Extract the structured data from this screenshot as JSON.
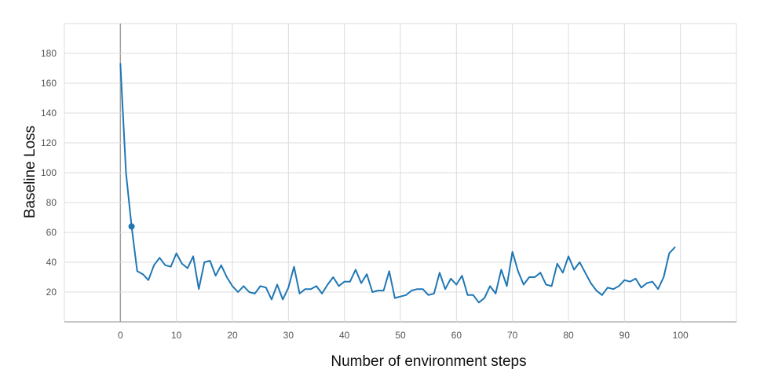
{
  "chart_data": {
    "type": "line",
    "title": "",
    "xlabel": "Number of environment steps",
    "ylabel": "Baseline Loss",
    "xlim": [
      -10,
      110
    ],
    "ylim": [
      0,
      200
    ],
    "x_ticks": [
      0,
      10,
      20,
      30,
      40,
      50,
      60,
      70,
      80,
      90,
      100
    ],
    "y_ticks": [
      20,
      40,
      60,
      80,
      100,
      120,
      140,
      160,
      180
    ],
    "grid": true,
    "legend": "none",
    "line_color": "#1f77b4",
    "highlight_point": {
      "x": 2,
      "y": 64
    },
    "series": [
      {
        "x": [
          0,
          1,
          2,
          3,
          4,
          5,
          6,
          7,
          8,
          9,
          10,
          11,
          12,
          13,
          14,
          15,
          16,
          17,
          18,
          19,
          20,
          21,
          22,
          23,
          24,
          25,
          26,
          27,
          28,
          29,
          30,
          31,
          32,
          33,
          34,
          35,
          36,
          37,
          38,
          39,
          40,
          41,
          42,
          43,
          44,
          45,
          46,
          47,
          48,
          49,
          50,
          51,
          52,
          53,
          54,
          55,
          56,
          57,
          58,
          59,
          60,
          61,
          62,
          63,
          64,
          65,
          66,
          67,
          68,
          69,
          70,
          71,
          72,
          73,
          74,
          75,
          76,
          77,
          78,
          79,
          80,
          81,
          82,
          83,
          84,
          85,
          86,
          87,
          88,
          89,
          90,
          91,
          92,
          93,
          94,
          95,
          96,
          97,
          98,
          99
        ],
        "values": [
          173,
          100,
          64,
          34,
          32,
          28,
          38,
          43,
          38,
          37,
          46,
          39,
          36,
          44,
          22,
          40,
          41,
          31,
          38,
          30,
          24,
          20,
          24,
          20,
          19,
          24,
          23,
          15,
          25,
          15,
          23,
          37,
          19,
          22,
          22,
          24,
          19,
          25,
          30,
          24,
          27,
          27,
          35,
          26,
          32,
          20,
          21,
          21,
          34,
          16,
          17,
          18,
          21,
          22,
          22,
          18,
          19,
          33,
          22,
          29,
          25,
          31,
          18,
          18,
          13,
          16,
          24,
          19,
          35,
          24,
          47,
          34,
          25,
          30,
          30,
          33,
          25,
          24,
          39,
          33,
          44,
          35,
          40,
          33,
          26,
          21,
          18,
          23,
          22,
          24,
          28,
          27,
          29,
          23,
          26,
          27,
          22,
          30,
          46,
          50
        ]
      }
    ]
  }
}
